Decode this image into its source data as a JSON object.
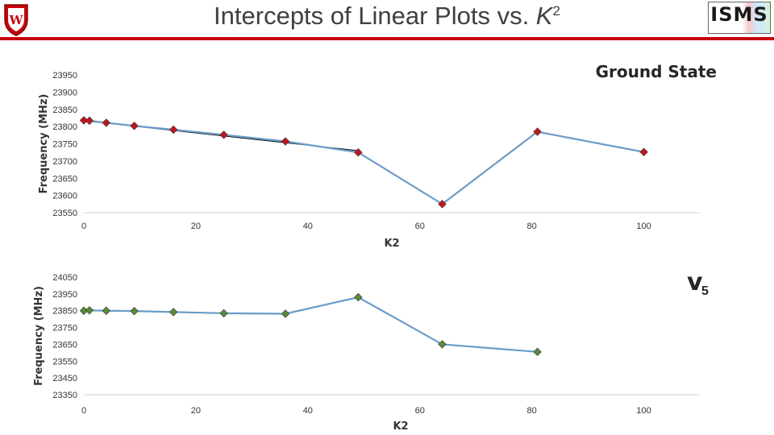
{
  "header": {
    "title_text": "Intercepts of Linear Plots vs. ",
    "title_k": "K",
    "title_sup": "2",
    "logo_right_text": "ISMS",
    "divider_color": "#c5050c"
  },
  "chart_data": [
    {
      "type": "line",
      "title": "Ground State",
      "xlabel": "K2",
      "ylabel": "Frequency (MHz)",
      "xlim": [
        0,
        110
      ],
      "ylim": [
        23550,
        23950
      ],
      "xticks": [
        0,
        20,
        40,
        60,
        80,
        100
      ],
      "yticks": [
        23550,
        23600,
        23650,
        23700,
        23750,
        23800,
        23850,
        23900,
        23950
      ],
      "line_color": "#6b9cc8",
      "marker_color": "#c0161f",
      "fit_line": {
        "x": [
          0,
          49
        ],
        "y": [
          23817,
          23730
        ],
        "color": "#000000"
      },
      "series": [
        {
          "x": [
            0,
            1,
            4,
            9,
            16,
            25,
            36,
            49,
            64,
            81,
            100
          ],
          "y": [
            23818,
            23817,
            23811,
            23802,
            23791,
            23776,
            23757,
            23725,
            23575,
            23785,
            23726
          ]
        }
      ]
    },
    {
      "type": "line",
      "title_main": "v",
      "title_sub": "5",
      "xlabel": "K2",
      "ylabel": "Frequency (MHz)",
      "xlim": [
        0,
        110
      ],
      "ylim": [
        23350,
        24050
      ],
      "xticks": [
        0,
        20,
        40,
        60,
        80,
        100
      ],
      "yticks": [
        23350,
        23450,
        23550,
        23650,
        23750,
        23850,
        23950,
        24050
      ],
      "line_color": "#6b9cc8",
      "marker_color": "#5a8a3c",
      "series": [
        {
          "x": [
            0,
            1,
            4,
            9,
            16,
            25,
            36,
            49,
            64,
            81
          ],
          "y": [
            23850,
            23852,
            23850,
            23848,
            23842,
            23835,
            23832,
            23930,
            23650,
            23605
          ]
        }
      ]
    }
  ]
}
